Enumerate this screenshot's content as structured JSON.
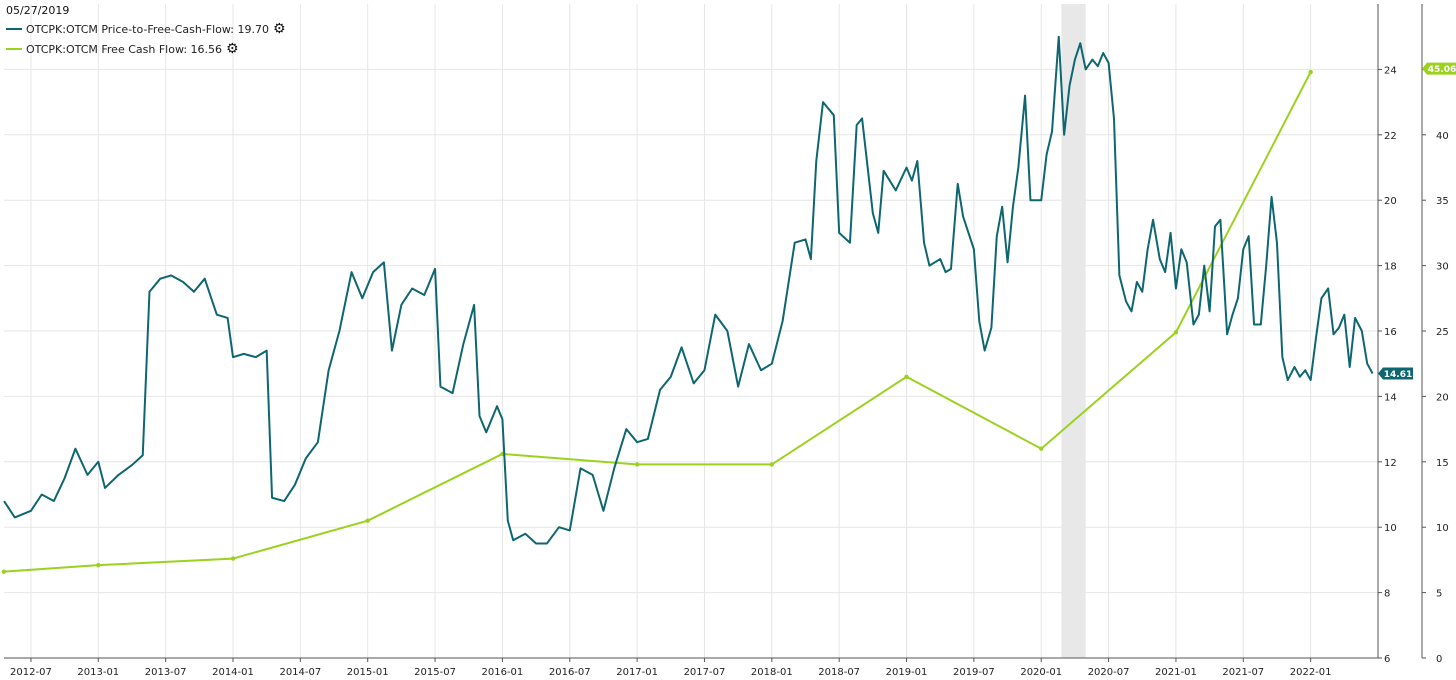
{
  "legend": {
    "date": "05/27/2019",
    "series_1": "OTCPK:OTCM Price-to-Free-Cash-Flow: 19.70",
    "series_2": "OTCPK:OTCM Free Cash Flow: 16.56",
    "gear_icon": "gear-icon"
  },
  "colors": {
    "ptfcf": "#0e6670",
    "fcf": "#9bd21e",
    "grid": "#e6e6e6",
    "recession": "#e8e8e8"
  },
  "chart_data": {
    "type": "line",
    "x_tick_labels": [
      "2012-07",
      "2013-01",
      "2013-07",
      "2014-01",
      "2014-07",
      "2015-01",
      "2015-07",
      "2016-01",
      "2016-07",
      "2017-01",
      "2017-07",
      "2018-01",
      "2018-07",
      "2019-01",
      "2019-07",
      "2020-01",
      "2020-07",
      "2021-01",
      "2021-07",
      "2022-01"
    ],
    "xlim": [
      2012.3,
      2022.5
    ],
    "left_axis": {
      "ticks": [
        6,
        8,
        10,
        12,
        14,
        16,
        18,
        20,
        22,
        24
      ],
      "ylim": [
        6,
        26
      ]
    },
    "right_axis": {
      "ticks": [
        0,
        5,
        10,
        15,
        20,
        25,
        30,
        35,
        40,
        45
      ],
      "ylim": [
        0,
        50
      ]
    },
    "shaded_range": {
      "from": 2020.15,
      "to": 2020.33
    },
    "series": [
      {
        "name": "OTCPK:OTCM Price-to-Free-Cash-Flow",
        "axis": "left",
        "last_value": "14.61",
        "points": [
          [
            2012.3,
            10.8
          ],
          [
            2012.38,
            10.3
          ],
          [
            2012.5,
            10.5
          ],
          [
            2012.58,
            11.0
          ],
          [
            2012.67,
            10.8
          ],
          [
            2012.75,
            11.5
          ],
          [
            2012.83,
            12.4
          ],
          [
            2012.92,
            11.6
          ],
          [
            2013.0,
            12.0
          ],
          [
            2013.05,
            11.2
          ],
          [
            2013.15,
            11.6
          ],
          [
            2013.25,
            11.9
          ],
          [
            2013.33,
            12.2
          ],
          [
            2013.38,
            17.2
          ],
          [
            2013.46,
            17.6
          ],
          [
            2013.54,
            17.7
          ],
          [
            2013.63,
            17.5
          ],
          [
            2013.71,
            17.2
          ],
          [
            2013.79,
            17.6
          ],
          [
            2013.88,
            16.5
          ],
          [
            2013.96,
            16.4
          ],
          [
            2014.0,
            15.2
          ],
          [
            2014.08,
            15.3
          ],
          [
            2014.17,
            15.2
          ],
          [
            2014.25,
            15.4
          ],
          [
            2014.29,
            10.9
          ],
          [
            2014.38,
            10.8
          ],
          [
            2014.46,
            11.3
          ],
          [
            2014.54,
            12.1
          ],
          [
            2014.63,
            12.6
          ],
          [
            2014.71,
            14.8
          ],
          [
            2014.79,
            16.0
          ],
          [
            2014.88,
            17.8
          ],
          [
            2014.96,
            17.0
          ],
          [
            2015.04,
            17.8
          ],
          [
            2015.12,
            18.1
          ],
          [
            2015.18,
            15.4
          ],
          [
            2015.25,
            16.8
          ],
          [
            2015.33,
            17.3
          ],
          [
            2015.42,
            17.1
          ],
          [
            2015.5,
            17.9
          ],
          [
            2015.54,
            14.3
          ],
          [
            2015.63,
            14.1
          ],
          [
            2015.71,
            15.6
          ],
          [
            2015.79,
            16.8
          ],
          [
            2015.83,
            13.4
          ],
          [
            2015.88,
            12.9
          ],
          [
            2015.96,
            13.7
          ],
          [
            2016.0,
            13.3
          ],
          [
            2016.04,
            10.2
          ],
          [
            2016.08,
            9.6
          ],
          [
            2016.17,
            9.8
          ],
          [
            2016.25,
            9.5
          ],
          [
            2016.33,
            9.5
          ],
          [
            2016.42,
            10.0
          ],
          [
            2016.5,
            9.9
          ],
          [
            2016.58,
            11.8
          ],
          [
            2016.67,
            11.6
          ],
          [
            2016.75,
            10.5
          ],
          [
            2016.83,
            11.8
          ],
          [
            2016.92,
            13.0
          ],
          [
            2017.0,
            12.6
          ],
          [
            2017.08,
            12.7
          ],
          [
            2017.17,
            14.2
          ],
          [
            2017.25,
            14.6
          ],
          [
            2017.33,
            15.5
          ],
          [
            2017.42,
            14.4
          ],
          [
            2017.5,
            14.8
          ],
          [
            2017.58,
            16.5
          ],
          [
            2017.67,
            16.0
          ],
          [
            2017.75,
            14.3
          ],
          [
            2017.83,
            15.6
          ],
          [
            2017.92,
            14.8
          ],
          [
            2018.0,
            15.0
          ],
          [
            2018.08,
            16.3
          ],
          [
            2018.17,
            18.7
          ],
          [
            2018.25,
            18.8
          ],
          [
            2018.29,
            18.2
          ],
          [
            2018.33,
            21.2
          ],
          [
            2018.38,
            23.0
          ],
          [
            2018.46,
            22.6
          ],
          [
            2018.5,
            19.0
          ],
          [
            2018.58,
            18.7
          ],
          [
            2018.63,
            22.3
          ],
          [
            2018.67,
            22.5
          ],
          [
            2018.75,
            19.6
          ],
          [
            2018.79,
            19.0
          ],
          [
            2018.83,
            20.9
          ],
          [
            2018.92,
            20.3
          ],
          [
            2019.0,
            21.0
          ],
          [
            2019.04,
            20.6
          ],
          [
            2019.08,
            21.2
          ],
          [
            2019.13,
            18.7
          ],
          [
            2019.17,
            18.0
          ],
          [
            2019.25,
            18.2
          ],
          [
            2019.29,
            17.8
          ],
          [
            2019.33,
            17.9
          ],
          [
            2019.38,
            20.5
          ],
          [
            2019.42,
            19.5
          ],
          [
            2019.5,
            18.5
          ],
          [
            2019.54,
            16.3
          ],
          [
            2019.58,
            15.4
          ],
          [
            2019.63,
            16.1
          ],
          [
            2019.67,
            18.9
          ],
          [
            2019.71,
            19.8
          ],
          [
            2019.75,
            18.1
          ],
          [
            2019.79,
            19.8
          ],
          [
            2019.83,
            21.0
          ],
          [
            2019.88,
            23.2
          ],
          [
            2019.92,
            20.0
          ],
          [
            2020.0,
            20.0
          ],
          [
            2020.04,
            21.4
          ],
          [
            2020.08,
            22.1
          ],
          [
            2020.13,
            25.0
          ],
          [
            2020.17,
            22.0
          ],
          [
            2020.21,
            23.5
          ],
          [
            2020.25,
            24.3
          ],
          [
            2020.29,
            24.8
          ],
          [
            2020.33,
            24.0
          ],
          [
            2020.38,
            24.3
          ],
          [
            2020.42,
            24.1
          ],
          [
            2020.46,
            24.5
          ],
          [
            2020.5,
            24.2
          ],
          [
            2020.54,
            22.5
          ],
          [
            2020.58,
            17.7
          ],
          [
            2020.63,
            16.9
          ],
          [
            2020.67,
            16.6
          ],
          [
            2020.71,
            17.5
          ],
          [
            2020.75,
            17.2
          ],
          [
            2020.79,
            18.5
          ],
          [
            2020.83,
            19.4
          ],
          [
            2020.88,
            18.2
          ],
          [
            2020.92,
            17.8
          ],
          [
            2020.96,
            19.0
          ],
          [
            2021.0,
            17.3
          ],
          [
            2021.04,
            18.5
          ],
          [
            2021.08,
            18.1
          ],
          [
            2021.13,
            16.2
          ],
          [
            2021.17,
            16.5
          ],
          [
            2021.21,
            18.0
          ],
          [
            2021.25,
            16.6
          ],
          [
            2021.29,
            19.2
          ],
          [
            2021.33,
            19.4
          ],
          [
            2021.38,
            15.9
          ],
          [
            2021.42,
            16.5
          ],
          [
            2021.46,
            17.0
          ],
          [
            2021.5,
            18.5
          ],
          [
            2021.54,
            18.9
          ],
          [
            2021.58,
            16.2
          ],
          [
            2021.63,
            16.2
          ],
          [
            2021.67,
            18.0
          ],
          [
            2021.71,
            20.1
          ],
          [
            2021.75,
            18.7
          ],
          [
            2021.79,
            15.2
          ],
          [
            2021.83,
            14.5
          ],
          [
            2021.88,
            14.9
          ],
          [
            2021.92,
            14.6
          ],
          [
            2021.96,
            14.8
          ],
          [
            2022.0,
            14.5
          ],
          [
            2022.04,
            15.8
          ],
          [
            2022.08,
            17.0
          ],
          [
            2022.13,
            17.3
          ],
          [
            2022.17,
            15.9
          ],
          [
            2022.21,
            16.1
          ],
          [
            2022.25,
            16.5
          ],
          [
            2022.29,
            14.9
          ],
          [
            2022.33,
            16.4
          ],
          [
            2022.38,
            16.0
          ],
          [
            2022.42,
            15.0
          ],
          [
            2022.46,
            14.7
          ]
        ]
      },
      {
        "name": "OTCPK:OTCM Free Cash Flow",
        "axis": "right",
        "last_value": "45.06",
        "points": [
          [
            2012.3,
            6.6
          ],
          [
            2013.0,
            7.1
          ],
          [
            2014.0,
            7.6
          ],
          [
            2015.0,
            10.5
          ],
          [
            2016.0,
            15.6
          ],
          [
            2017.0,
            14.8
          ],
          [
            2018.0,
            14.8
          ],
          [
            2019.0,
            21.5
          ],
          [
            2020.0,
            16.0
          ],
          [
            2021.0,
            24.9
          ],
          [
            2022.0,
            44.8
          ]
        ]
      }
    ]
  }
}
